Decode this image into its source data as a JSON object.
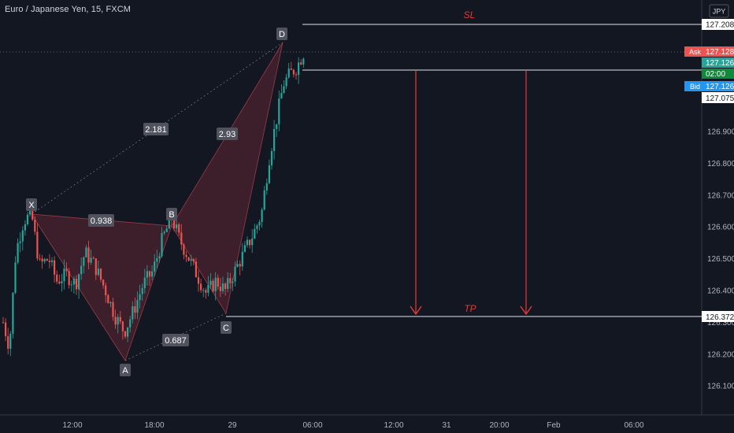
{
  "header": {
    "title": "Euro / Japanese Yen, 15, FXCM"
  },
  "currency_badge": "JPY",
  "chart_data": {
    "type": "candlestick",
    "symbol": "Euro / Japanese Yen",
    "interval": "15",
    "source": "FXCM",
    "y_ticks": [
      "126.900",
      "126.800",
      "126.700",
      "126.600",
      "126.500",
      "126.400",
      "126.300",
      "126.200",
      "126.100"
    ],
    "x_ticks": [
      "12:00",
      "18:00",
      "29",
      "06:00",
      "12:00",
      "31",
      "20:00",
      "Feb",
      "06:00"
    ],
    "price_tags": {
      "sl": "127.208",
      "ask": "127.128",
      "last": "127.126",
      "countdown": "02:00",
      "bid": "127.126",
      "entry": "127.075",
      "tp": "126.372"
    },
    "tag_labels": {
      "ask": "Ask",
      "bid": "Bid"
    },
    "pattern": {
      "points": [
        {
          "label": "X",
          "price": 126.66
        },
        {
          "label": "A",
          "price": 126.245
        },
        {
          "label": "B",
          "price": 126.64
        },
        {
          "label": "C",
          "price": 126.375
        },
        {
          "label": "D",
          "price": 127.17
        }
      ],
      "ratios": [
        "0.938",
        "2.181",
        "2.93",
        "0.687"
      ]
    },
    "annotations": {
      "sl": "SL",
      "tp": "TP"
    },
    "colors": {
      "up": "#26a69a",
      "down": "#ef5350",
      "pattern": "#8b2f3c",
      "arrow": "#e53935",
      "ask": "#ef5350",
      "last": "#26a69a",
      "bid": "#2196f3"
    }
  }
}
